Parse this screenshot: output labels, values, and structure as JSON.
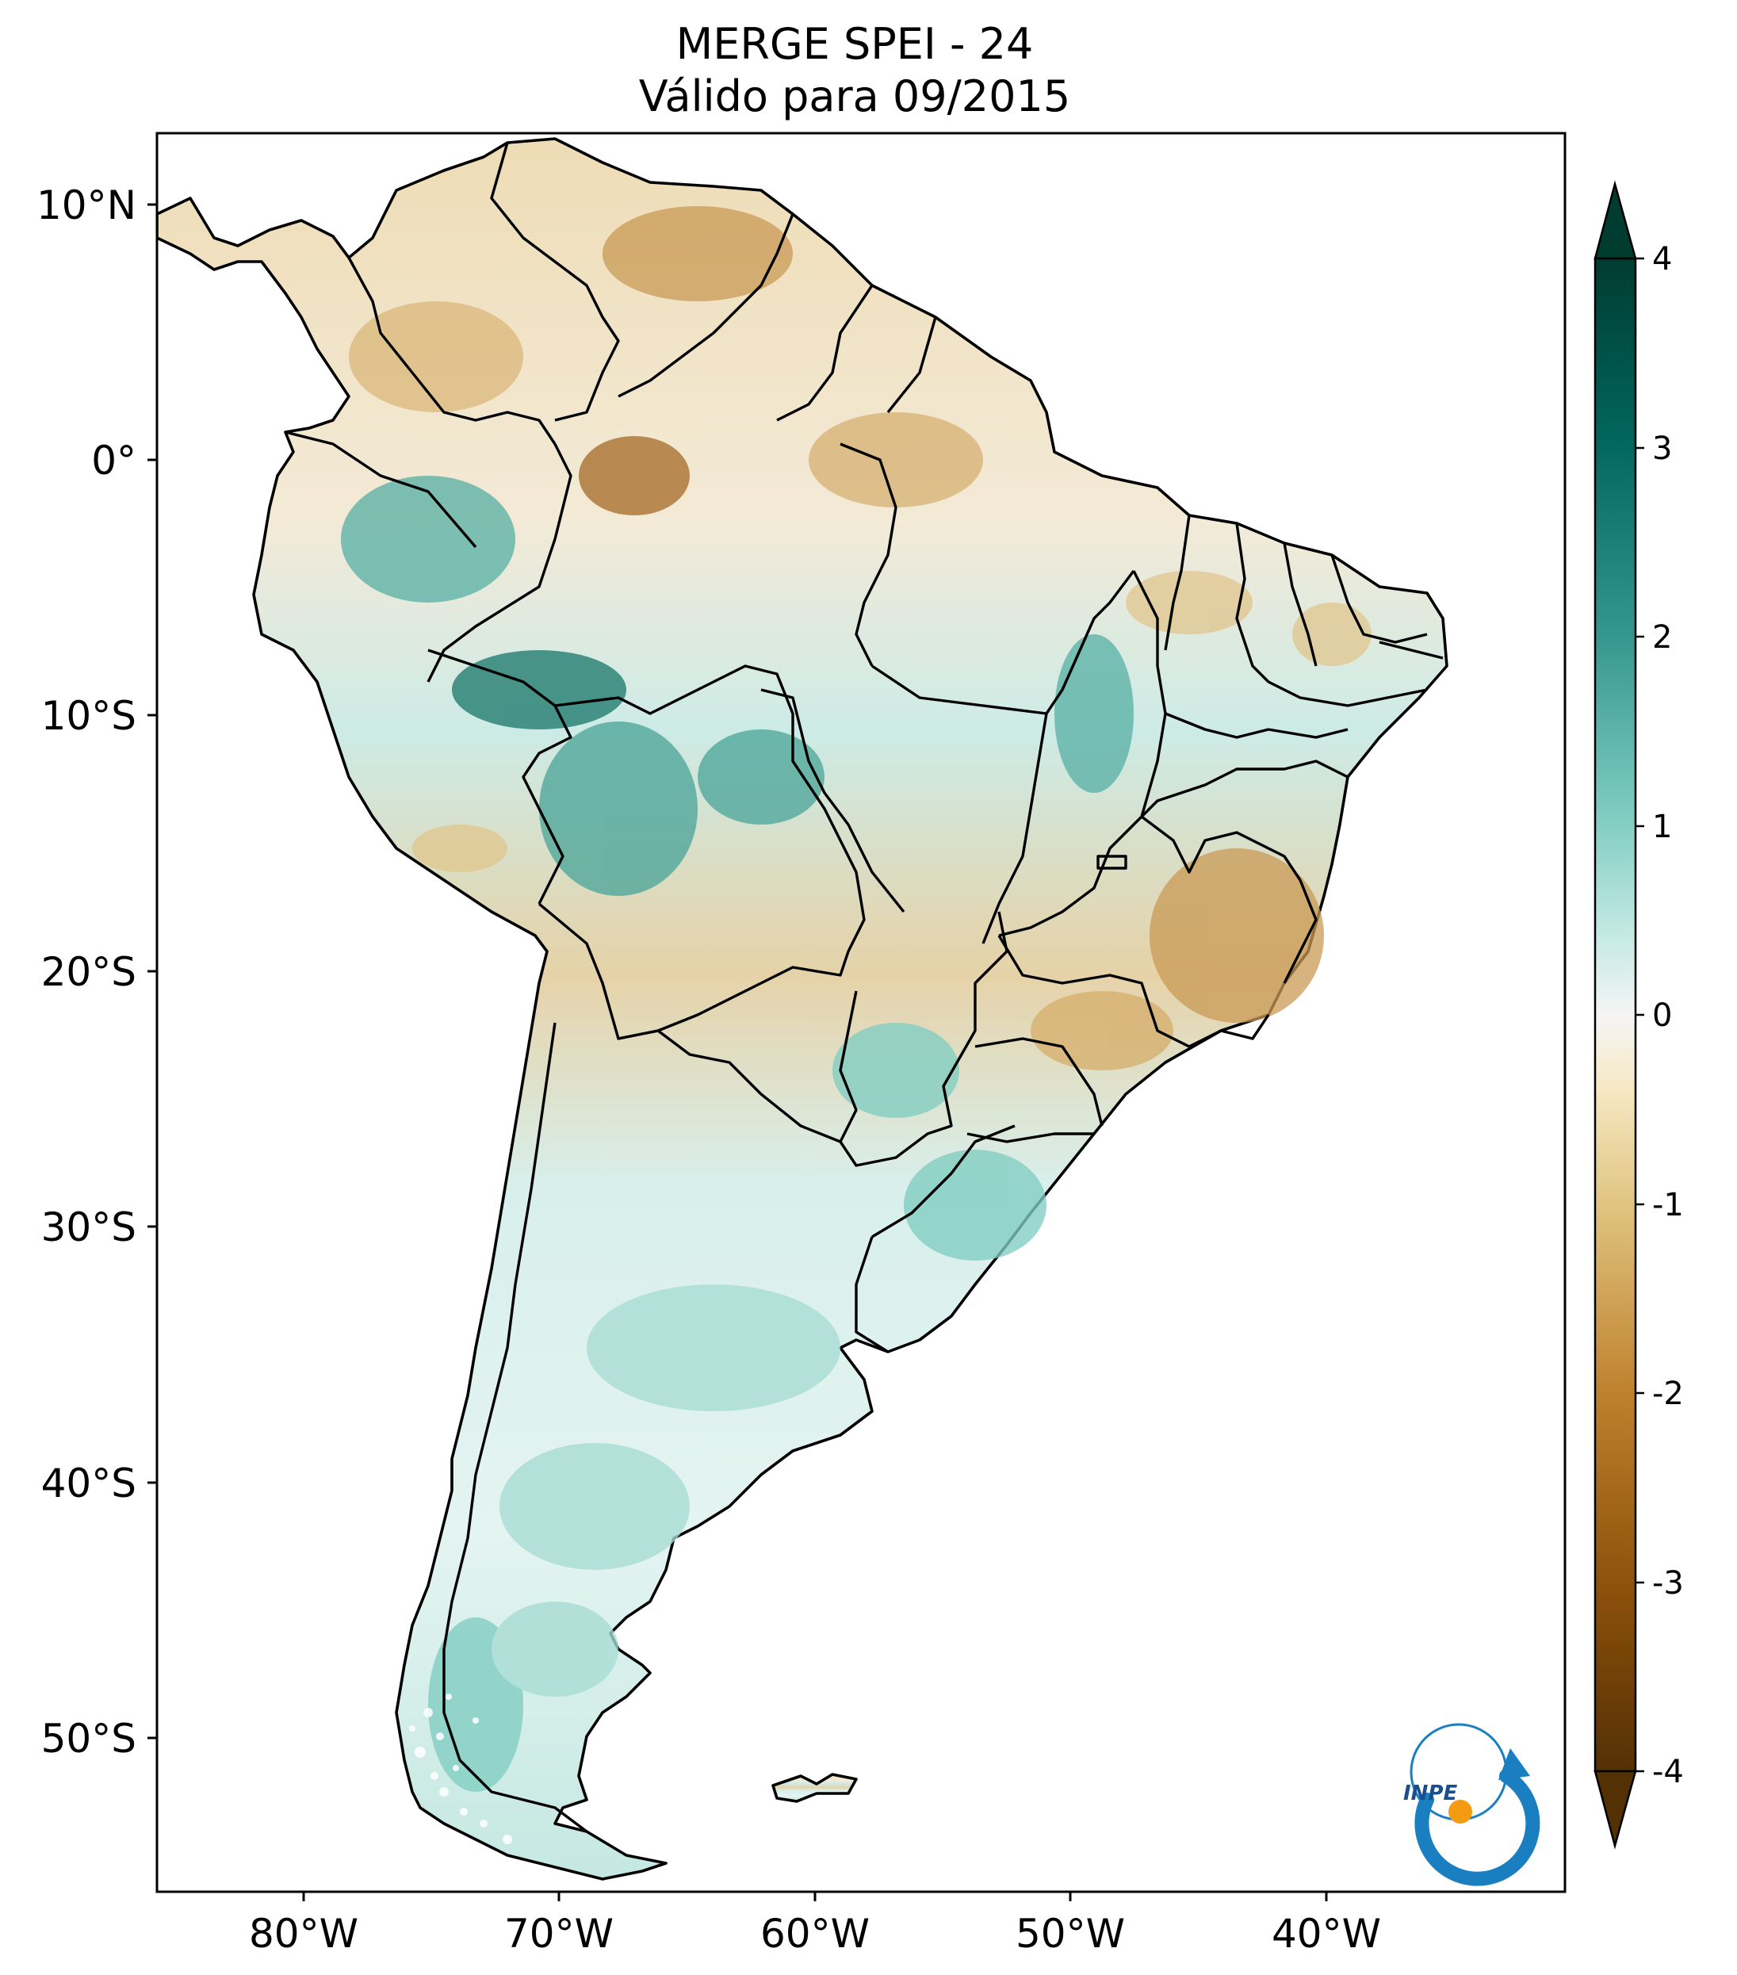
{
  "title": {
    "line1": "MERGE   SPEI - 24",
    "line2": "Válido para 09/2015"
  },
  "map": {
    "lon_ticks": [
      "80°W",
      "70°W",
      "60°W",
      "50°W",
      "40°W"
    ],
    "lat_ticks": [
      "10°N",
      "0°",
      "10°S",
      "20°S",
      "30°S",
      "40°S",
      "50°S"
    ],
    "lon_range": [
      -85,
      -30
    ],
    "lat_range": [
      -56,
      13
    ]
  },
  "colorbar": {
    "ticks": [
      "4",
      "3",
      "2",
      "1",
      "0",
      "-1",
      "-2",
      "-3",
      "-4"
    ],
    "range": [
      -4,
      4
    ],
    "colormap": "BrBG",
    "colors": {
      "very_wet": "#003c30",
      "wet": "#35978f",
      "neutral": "#f5f5f5",
      "dry": "#dfc27d",
      "very_dry": "#543005"
    }
  },
  "logo": {
    "text": "INPE",
    "icon": "inpe-logo-icon"
  }
}
